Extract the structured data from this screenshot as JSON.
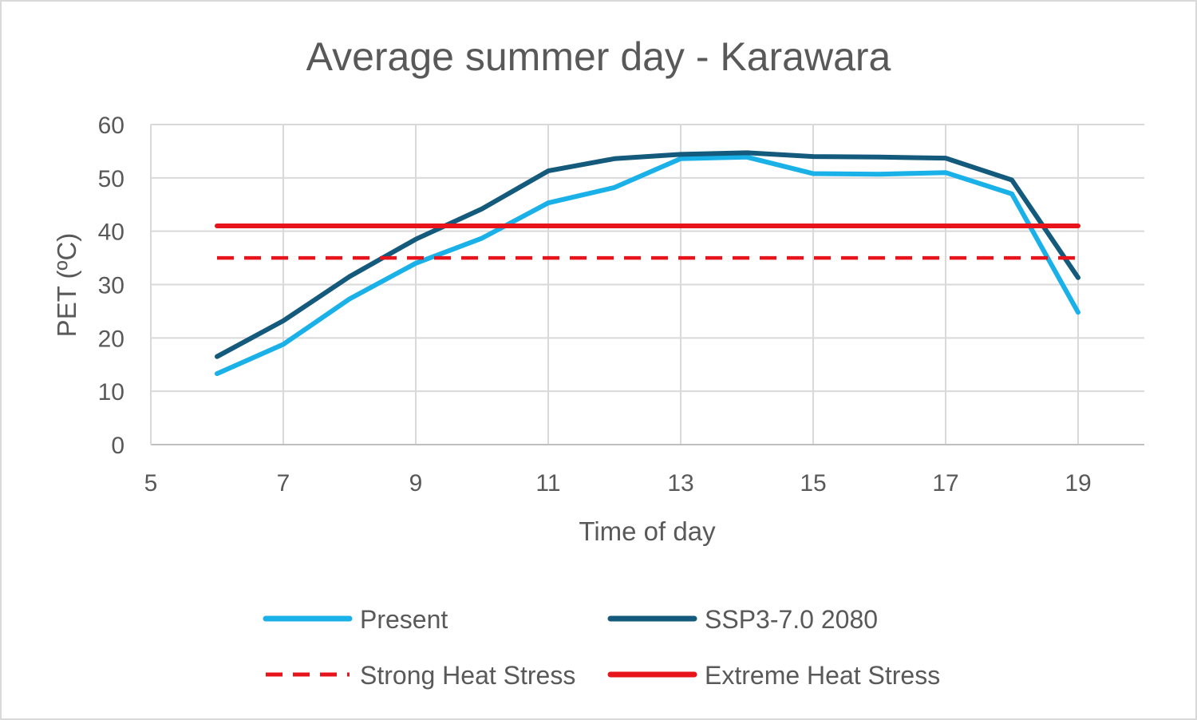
{
  "chart_data": {
    "type": "line",
    "title": "Average summer day - Karawara",
    "xlabel": "Time of day",
    "ylabel": "PET (ºC)",
    "xlim": [
      5,
      20
    ],
    "ylim": [
      0,
      60
    ],
    "x_ticks": [
      5,
      7,
      9,
      11,
      13,
      15,
      17,
      19
    ],
    "y_ticks": [
      0,
      10,
      20,
      30,
      40,
      50,
      60
    ],
    "grid": true,
    "legend_position": "bottom",
    "series": [
      {
        "name": "Present",
        "color": "#1ab0e8",
        "style": "solid",
        "x": [
          6,
          7,
          8,
          9,
          10,
          11,
          12,
          13,
          14,
          15,
          16,
          17,
          18,
          19
        ],
        "values": [
          13.3,
          18.8,
          27.3,
          34.0,
          38.7,
          45.3,
          48.2,
          53.6,
          53.9,
          50.8,
          50.7,
          51.0,
          47.0,
          24.8
        ]
      },
      {
        "name": "SSP3-7.0 2080",
        "color": "#145a7c",
        "style": "solid",
        "x": [
          6,
          7,
          8,
          9,
          10,
          11,
          12,
          13,
          14,
          15,
          16,
          17,
          18,
          19
        ],
        "values": [
          16.5,
          23.2,
          31.5,
          38.5,
          44.2,
          51.3,
          53.6,
          54.4,
          54.7,
          54.0,
          53.9,
          53.7,
          49.6,
          31.3
        ]
      },
      {
        "name": "Strong Heat Stress",
        "color": "#e8141c",
        "style": "dashed",
        "x": [
          6,
          19
        ],
        "values": [
          35,
          35
        ]
      },
      {
        "name": "Extreme Heat Stress",
        "color": "#e8141c",
        "style": "solid",
        "x": [
          6,
          19
        ],
        "values": [
          41,
          41
        ]
      }
    ]
  }
}
